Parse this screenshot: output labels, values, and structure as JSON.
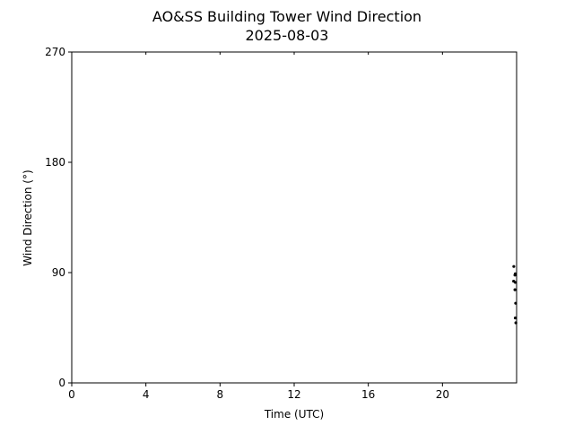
{
  "chart_data": {
    "type": "scatter",
    "title": "AO&SS Building Tower Wind Direction",
    "subtitle": "2025-08-03",
    "xlabel": "Time (UTC)",
    "ylabel": "Wind Direction (°)",
    "xlim": [
      0,
      24
    ],
    "ylim": [
      0,
      270
    ],
    "xticks": [
      0,
      4,
      8,
      12,
      16,
      20
    ],
    "xtick_labels": [
      "0",
      "4",
      "8",
      "12",
      "16",
      "20"
    ],
    "yticks": [
      0,
      90,
      180,
      270
    ],
    "ytick_labels": [
      "0",
      "90",
      "180",
      "270"
    ],
    "grid": false,
    "marker_color": "#000000",
    "points": [
      {
        "x": 23.85,
        "y": 95
      },
      {
        "x": 23.93,
        "y": 89
      },
      {
        "x": 23.91,
        "y": 88
      },
      {
        "x": 23.84,
        "y": 83
      },
      {
        "x": 23.93,
        "y": 82
      },
      {
        "x": 23.91,
        "y": 76
      },
      {
        "x": 23.95,
        "y": 65
      },
      {
        "x": 23.93,
        "y": 53
      },
      {
        "x": 23.96,
        "y": 49
      }
    ]
  }
}
